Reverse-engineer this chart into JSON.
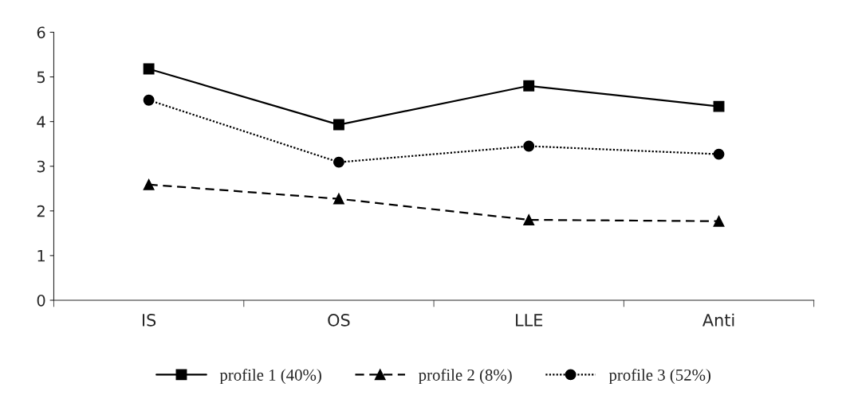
{
  "chart_data": {
    "type": "line",
    "categories": [
      "IS",
      "OS",
      "LLE",
      "Anti"
    ],
    "series": [
      {
        "name": "profile 1 (40%)",
        "color": "#000000",
        "marker": "square",
        "line_style": "solid",
        "values": [
          5.18,
          3.93,
          4.8,
          4.34
        ]
      },
      {
        "name": "profile 2 (8%)",
        "color": "#000000",
        "marker": "triangle",
        "line_style": "dashed",
        "values": [
          2.59,
          2.27,
          1.8,
          1.77
        ]
      },
      {
        "name": "profile 3 (52%)",
        "color": "#000000",
        "marker": "circle",
        "line_style": "dotted",
        "values": [
          4.48,
          3.09,
          3.45,
          3.27
        ]
      }
    ],
    "ylim": [
      0,
      6
    ],
    "yticks": [
      0,
      1,
      2,
      3,
      4,
      5,
      6
    ],
    "grid": false,
    "legend": "bottom"
  }
}
